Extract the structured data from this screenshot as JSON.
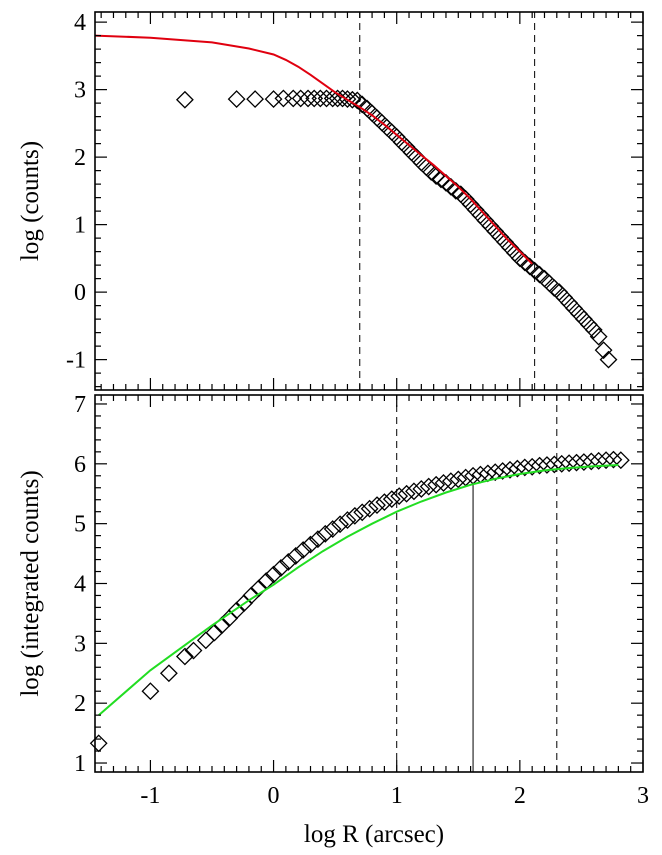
{
  "chart_data": [
    {
      "type": "scatter",
      "panel": "top",
      "xlabel": "",
      "ylabel": "log (counts)",
      "xlim": [
        -1.45,
        3.0
      ],
      "ylim": [
        -1.45,
        4.15
      ],
      "grid": false,
      "xticks": [
        -1,
        0,
        1,
        2,
        3
      ],
      "xtick_labels": [],
      "yticks": [
        -1,
        0,
        1,
        2,
        3,
        4
      ],
      "ytick_labels": [
        "-1",
        "0",
        "1",
        "2",
        "3",
        "4"
      ],
      "vlines": [
        {
          "x": 0.7,
          "style": "dashed"
        },
        {
          "x": 2.12,
          "style": "dashed"
        }
      ],
      "series": [
        {
          "kind": "markers",
          "marker": "diamond",
          "color": "#000000",
          "x": [
            -0.72,
            -0.3,
            -0.15,
            0.0,
            0.08,
            0.16,
            0.22,
            0.28,
            0.33,
            0.38,
            0.43,
            0.48,
            0.52,
            0.56,
            0.6,
            0.64,
            0.68,
            0.72,
            0.76,
            0.8,
            0.84,
            0.88,
            0.92,
            0.96,
            1.0,
            1.04,
            1.08,
            1.12,
            1.16,
            1.2,
            1.24,
            1.28,
            1.32,
            1.36,
            1.4,
            1.44,
            1.48,
            1.52,
            1.56,
            1.6,
            1.64,
            1.68,
            1.72,
            1.76,
            1.8,
            1.84,
            1.88,
            1.92,
            1.96,
            2.0,
            2.04,
            2.08,
            2.12,
            2.16,
            2.2,
            2.24,
            2.28,
            2.32,
            2.36,
            2.4,
            2.44,
            2.48,
            2.52,
            2.56,
            2.6,
            2.64,
            2.68,
            2.72
          ],
          "y": [
            2.85,
            2.86,
            2.86,
            2.86,
            2.87,
            2.87,
            2.87,
            2.87,
            2.87,
            2.87,
            2.87,
            2.87,
            2.87,
            2.87,
            2.86,
            2.85,
            2.84,
            2.78,
            2.72,
            2.65,
            2.58,
            2.51,
            2.44,
            2.37,
            2.3,
            2.22,
            2.15,
            2.07,
            2.0,
            1.92,
            1.85,
            1.78,
            1.72,
            1.67,
            1.62,
            1.56,
            1.5,
            1.45,
            1.38,
            1.3,
            1.22,
            1.14,
            1.06,
            0.98,
            0.9,
            0.82,
            0.74,
            0.66,
            0.58,
            0.5,
            0.44,
            0.38,
            0.32,
            0.26,
            0.2,
            0.13,
            0.06,
            0.0,
            -0.08,
            -0.16,
            -0.24,
            -0.32,
            -0.4,
            -0.48,
            -0.56,
            -0.66,
            -0.86,
            -1.0
          ]
        },
        {
          "kind": "line",
          "color": "#e0000f",
          "x": [
            -1.45,
            -1.0,
            -0.5,
            -0.2,
            0.0,
            0.1,
            0.2,
            0.3,
            0.4,
            0.5,
            0.6,
            0.7,
            0.8,
            0.9,
            1.0,
            1.1,
            1.2,
            1.3,
            1.4,
            1.5,
            1.6,
            1.7,
            1.8,
            1.9,
            2.0,
            2.1
          ],
          "y": [
            3.8,
            3.77,
            3.7,
            3.61,
            3.52,
            3.44,
            3.34,
            3.22,
            3.09,
            2.96,
            2.85,
            2.74,
            2.62,
            2.48,
            2.33,
            2.18,
            2.03,
            1.88,
            1.72,
            1.56,
            1.38,
            1.18,
            0.98,
            0.78,
            0.6,
            0.42
          ]
        }
      ]
    },
    {
      "type": "scatter",
      "panel": "bottom",
      "xlabel": "log R (arcsec)",
      "ylabel": "log (integrated counts)",
      "xlim": [
        -1.45,
        3.0
      ],
      "ylim": [
        0.85,
        7.15
      ],
      "grid": false,
      "xticks": [
        -1,
        0,
        1,
        2,
        3
      ],
      "xtick_labels": [
        "-1",
        "0",
        "1",
        "2",
        "3"
      ],
      "yticks": [
        1,
        2,
        3,
        4,
        5,
        6,
        7
      ],
      "ytick_labels": [
        "1",
        "2",
        "3",
        "4",
        "5",
        "6",
        "7"
      ],
      "vlines": [
        {
          "x": 1.0,
          "style": "dashed"
        },
        {
          "x": 1.62,
          "style": "solid",
          "from_bottom_to": 5.68
        },
        {
          "x": 2.3,
          "style": "dashed"
        }
      ],
      "series": [
        {
          "kind": "markers",
          "marker": "diamond",
          "color": "#000000",
          "x": [
            -1.42,
            -1.0,
            -0.85,
            -0.72,
            -0.65,
            -0.55,
            -0.48,
            -0.42,
            -0.36,
            -0.3,
            -0.24,
            -0.18,
            -0.12,
            -0.06,
            0.0,
            0.06,
            0.12,
            0.18,
            0.24,
            0.3,
            0.36,
            0.42,
            0.48,
            0.54,
            0.6,
            0.66,
            0.72,
            0.78,
            0.84,
            0.9,
            0.96,
            1.02,
            1.08,
            1.14,
            1.2,
            1.26,
            1.32,
            1.38,
            1.44,
            1.5,
            1.56,
            1.62,
            1.68,
            1.74,
            1.8,
            1.86,
            1.92,
            1.98,
            2.04,
            2.1,
            2.16,
            2.22,
            2.28,
            2.34,
            2.4,
            2.46,
            2.52,
            2.58,
            2.64,
            2.7,
            2.76,
            2.82
          ],
          "y": [
            1.33,
            2.2,
            2.5,
            2.78,
            2.88,
            3.05,
            3.18,
            3.3,
            3.42,
            3.55,
            3.67,
            3.8,
            3.92,
            4.04,
            4.15,
            4.26,
            4.36,
            4.46,
            4.56,
            4.65,
            4.74,
            4.83,
            4.91,
            4.99,
            5.06,
            5.13,
            5.19,
            5.25,
            5.31,
            5.36,
            5.41,
            5.46,
            5.5,
            5.54,
            5.58,
            5.62,
            5.65,
            5.68,
            5.71,
            5.74,
            5.77,
            5.8,
            5.82,
            5.84,
            5.86,
            5.88,
            5.9,
            5.92,
            5.94,
            5.95,
            5.97,
            5.98,
            5.99,
            6.0,
            6.01,
            6.02,
            6.03,
            6.04,
            6.05,
            6.06,
            6.07,
            6.06
          ]
        },
        {
          "kind": "line",
          "color": "#22dd22",
          "x": [
            -1.42,
            -1.0,
            -0.5,
            -0.2,
            0.0,
            0.2,
            0.4,
            0.6,
            0.8,
            1.0,
            1.2,
            1.4,
            1.6,
            1.8,
            2.0,
            2.2,
            2.4,
            2.6,
            2.8
          ],
          "y": [
            1.8,
            2.55,
            3.3,
            3.72,
            3.98,
            4.27,
            4.54,
            4.78,
            5.0,
            5.2,
            5.37,
            5.52,
            5.65,
            5.75,
            5.83,
            5.89,
            5.93,
            5.96,
            5.98
          ]
        }
      ]
    }
  ]
}
